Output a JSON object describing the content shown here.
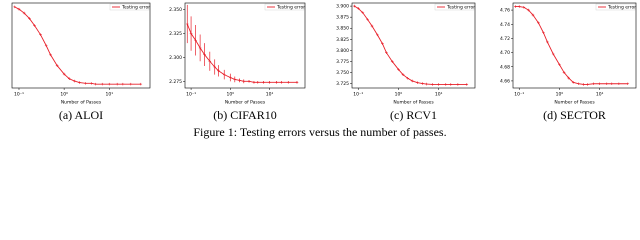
{
  "chart_data": [
    {
      "type": "line",
      "caption": "(a) ALOI",
      "xlabel": "Number of Passes",
      "log_x": true,
      "x": [
        0.08,
        0.1,
        0.13,
        0.17,
        0.22,
        0.3,
        0.4,
        0.5,
        0.7,
        1,
        1.3,
        1.7,
        2.2,
        3,
        4,
        5,
        7,
        10,
        15,
        20,
        30,
        50
      ],
      "xlim": [
        0.07,
        80
      ],
      "xticks": [
        {
          "value": 0.1,
          "label": "10⁻¹"
        },
        {
          "value": 1,
          "label": "10⁰"
        },
        {
          "value": 10,
          "label": "10¹"
        }
      ],
      "ylim": [
        -0.05,
        1.05
      ],
      "legend": "upper right",
      "series": [
        {
          "name": "Testing error",
          "color": "#e8202a",
          "values": [
            1.0,
            0.97,
            0.92,
            0.85,
            0.76,
            0.64,
            0.5,
            0.38,
            0.24,
            0.13,
            0.07,
            0.04,
            0.02,
            0.01,
            0.01,
            0,
            0,
            0,
            0,
            0,
            0,
            0
          ]
        }
      ]
    },
    {
      "type": "line",
      "caption": "(b) CIFAR10",
      "xlabel": "Number of Passes",
      "log_x": true,
      "x": [
        0.08,
        0.1,
        0.13,
        0.17,
        0.22,
        0.3,
        0.4,
        0.5,
        0.7,
        1,
        1.3,
        1.7,
        2.2,
        3,
        4,
        5,
        7,
        10,
        15,
        20,
        30,
        50
      ],
      "xlim": [
        0.07,
        80
      ],
      "xticks": [
        {
          "value": 0.1,
          "label": "10⁻¹"
        },
        {
          "value": 1,
          "label": "10⁰"
        },
        {
          "value": 10,
          "label": "10¹"
        }
      ],
      "ylim": [
        2.268,
        2.357
      ],
      "yticks": [
        {
          "value": 2.275,
          "label": "2.275"
        },
        {
          "value": 2.3,
          "label": "2.300"
        },
        {
          "value": 2.325,
          "label": "2.325"
        },
        {
          "value": 2.35,
          "label": "2.350"
        }
      ],
      "legend": "upper right",
      "series": [
        {
          "name": "Testing error",
          "color": "#e8202a",
          "values": [
            2.335,
            2.325,
            2.318,
            2.31,
            2.303,
            2.296,
            2.29,
            2.286,
            2.282,
            2.279,
            2.277,
            2.276,
            2.275,
            2.275,
            2.274,
            2.274,
            2.274,
            2.274,
            2.274,
            2.274,
            2.274,
            2.274
          ],
          "errors": [
            0.02,
            0.018,
            0.016,
            0.014,
            0.012,
            0.01,
            0.008,
            0.006,
            0.005,
            0.004,
            0.003,
            0.002,
            0.002,
            0.001,
            0.001,
            0.001,
            0.001,
            0.001,
            0.001,
            0.001,
            0.001,
            0.001
          ]
        }
      ]
    },
    {
      "type": "line",
      "caption": "(c) RCV1",
      "xlabel": "Number of Passes",
      "log_x": true,
      "x": [
        0.08,
        0.1,
        0.13,
        0.17,
        0.22,
        0.3,
        0.4,
        0.5,
        0.7,
        1,
        1.3,
        1.7,
        2.2,
        3,
        4,
        5,
        7,
        10,
        15,
        20,
        30,
        50
      ],
      "xlim": [
        0.07,
        80
      ],
      "xticks": [
        {
          "value": 0.1,
          "label": "10⁻¹"
        },
        {
          "value": 1,
          "label": "10⁰"
        },
        {
          "value": 10,
          "label": "10¹"
        }
      ],
      "ylim": [
        3.715,
        3.907
      ],
      "yticks": [
        {
          "value": 3.725,
          "label": "3.725"
        },
        {
          "value": 3.75,
          "label": "3.750"
        },
        {
          "value": 3.775,
          "label": "3.775"
        },
        {
          "value": 3.8,
          "label": "3.800"
        },
        {
          "value": 3.825,
          "label": "3.825"
        },
        {
          "value": 3.85,
          "label": "3.850"
        },
        {
          "value": 3.875,
          "label": "3.875"
        },
        {
          "value": 3.9,
          "label": "3.900"
        }
      ],
      "legend": "upper right",
      "series": [
        {
          "name": "Testing error",
          "color": "#e8202a",
          "values": [
            3.9,
            3.895,
            3.885,
            3.87,
            3.855,
            3.835,
            3.815,
            3.795,
            3.775,
            3.757,
            3.745,
            3.737,
            3.731,
            3.727,
            3.725,
            3.724,
            3.723,
            3.723,
            3.723,
            3.723,
            3.723,
            3.723
          ]
        }
      ]
    },
    {
      "type": "line",
      "caption": "(d) SECTOR",
      "xlabel": "Number of Passes",
      "log_x": true,
      "x": [
        0.08,
        0.1,
        0.13,
        0.17,
        0.22,
        0.3,
        0.4,
        0.5,
        0.7,
        1,
        1.3,
        1.7,
        2.2,
        3,
        4,
        5,
        7,
        10,
        15,
        20,
        30,
        50
      ],
      "xlim": [
        0.07,
        80
      ],
      "xticks": [
        {
          "value": 0.1,
          "label": "10⁻¹"
        },
        {
          "value": 1,
          "label": "10⁰"
        },
        {
          "value": 10,
          "label": "10¹"
        }
      ],
      "ylim": [
        4.65,
        4.77
      ],
      "yticks": [
        4.66,
        4.68,
        {
          "value": 4.7,
          "label": "4.70"
        },
        4.72,
        4.74,
        4.76
      ],
      "legend": "upper right",
      "series": [
        {
          "name": "Testing error",
          "color": "#e8202a",
          "values": [
            4.765,
            4.765,
            4.764,
            4.76,
            4.753,
            4.742,
            4.728,
            4.715,
            4.698,
            4.683,
            4.672,
            4.664,
            4.658,
            4.656,
            4.655,
            4.655,
            4.656,
            4.656,
            4.656,
            4.656,
            4.656,
            4.656
          ]
        }
      ]
    }
  ],
  "figure_caption": "Figure 1: Testing errors versus the number of passes."
}
